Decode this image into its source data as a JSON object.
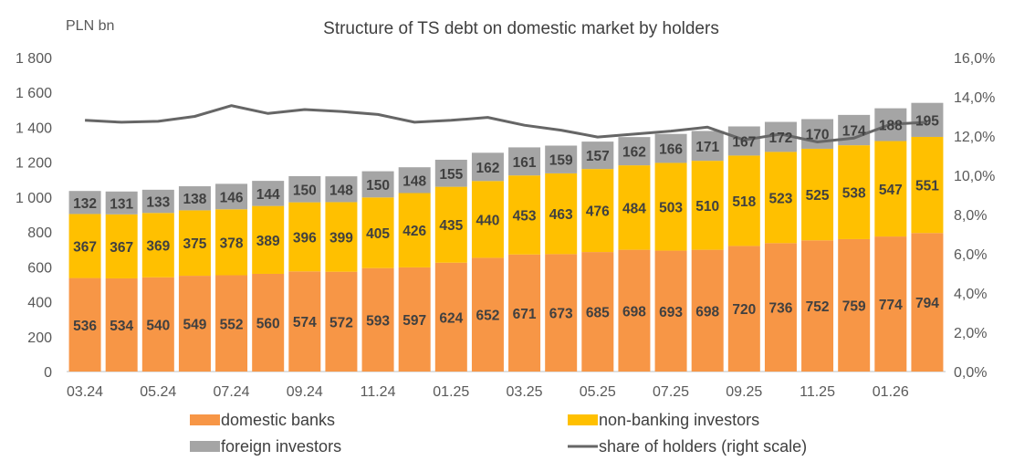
{
  "chart_data": {
    "type": "bar",
    "stacked": true,
    "title": "Structure of TS debt on domestic market by holders",
    "y_unit_label": "PLN bn",
    "categories": [
      "03.24",
      "04.24",
      "05.24",
      "06.24",
      "07.24",
      "08.24",
      "09.24",
      "10.24",
      "11.24",
      "12.24",
      "01.25",
      "02.25",
      "03.25",
      "04.25",
      "05.25",
      "06.25",
      "07.25",
      "08.25",
      "09.25",
      "10.25",
      "11.25",
      "12.25",
      "01.26",
      "02.26"
    ],
    "x_tick_labels": [
      "03.24",
      "05.24",
      "07.24",
      "09.24",
      "11.24",
      "01.25",
      "03.25",
      "05.25",
      "07.25",
      "09.25",
      "11.25",
      "01.26"
    ],
    "series": [
      {
        "name": "domestic banks",
        "color": "#F79646",
        "values": [
          536,
          534,
          540,
          549,
          552,
          560,
          574,
          572,
          593,
          597,
          624,
          652,
          671,
          673,
          685,
          698,
          693,
          698,
          720,
          736,
          752,
          759,
          774,
          794
        ]
      },
      {
        "name": "non-banking investors",
        "color": "#FFC000",
        "values": [
          367,
          367,
          369,
          375,
          378,
          389,
          396,
          399,
          405,
          426,
          435,
          440,
          453,
          463,
          476,
          484,
          503,
          510,
          518,
          523,
          525,
          538,
          547,
          551
        ]
      },
      {
        "name": "foreign investors",
        "color": "#A5A5A5",
        "values": [
          132,
          131,
          133,
          138,
          146,
          144,
          150,
          148,
          150,
          148,
          155,
          162,
          161,
          159,
          157,
          162,
          166,
          171,
          167,
          172,
          170,
          174,
          188,
          195
        ]
      }
    ],
    "line_series": {
      "name": "share of holders  (right scale)",
      "color": "#666666",
      "axis": "right",
      "values": [
        12.8,
        12.7,
        12.75,
        13.0,
        13.55,
        13.15,
        13.35,
        13.25,
        13.1,
        12.7,
        12.8,
        12.95,
        12.55,
        12.3,
        11.95,
        12.1,
        12.25,
        12.45,
        11.8,
        12.1,
        11.7,
        11.9,
        12.6,
        12.7
      ]
    },
    "y_left": {
      "min": 0,
      "max": 1800,
      "step": 200,
      "tick_labels": [
        "0",
        "200",
        "400",
        "600",
        "800",
        "1 000",
        "1 200",
        "1 400",
        "1 600",
        "1 800"
      ]
    },
    "y_right": {
      "min": 0,
      "max": 16,
      "step": 2,
      "tick_labels": [
        "0,0%",
        "2,0%",
        "4,0%",
        "6,0%",
        "8,0%",
        "10,0%",
        "12,0%",
        "14,0%",
        "16,0%"
      ]
    },
    "grid": false,
    "legend_position": "bottom"
  }
}
